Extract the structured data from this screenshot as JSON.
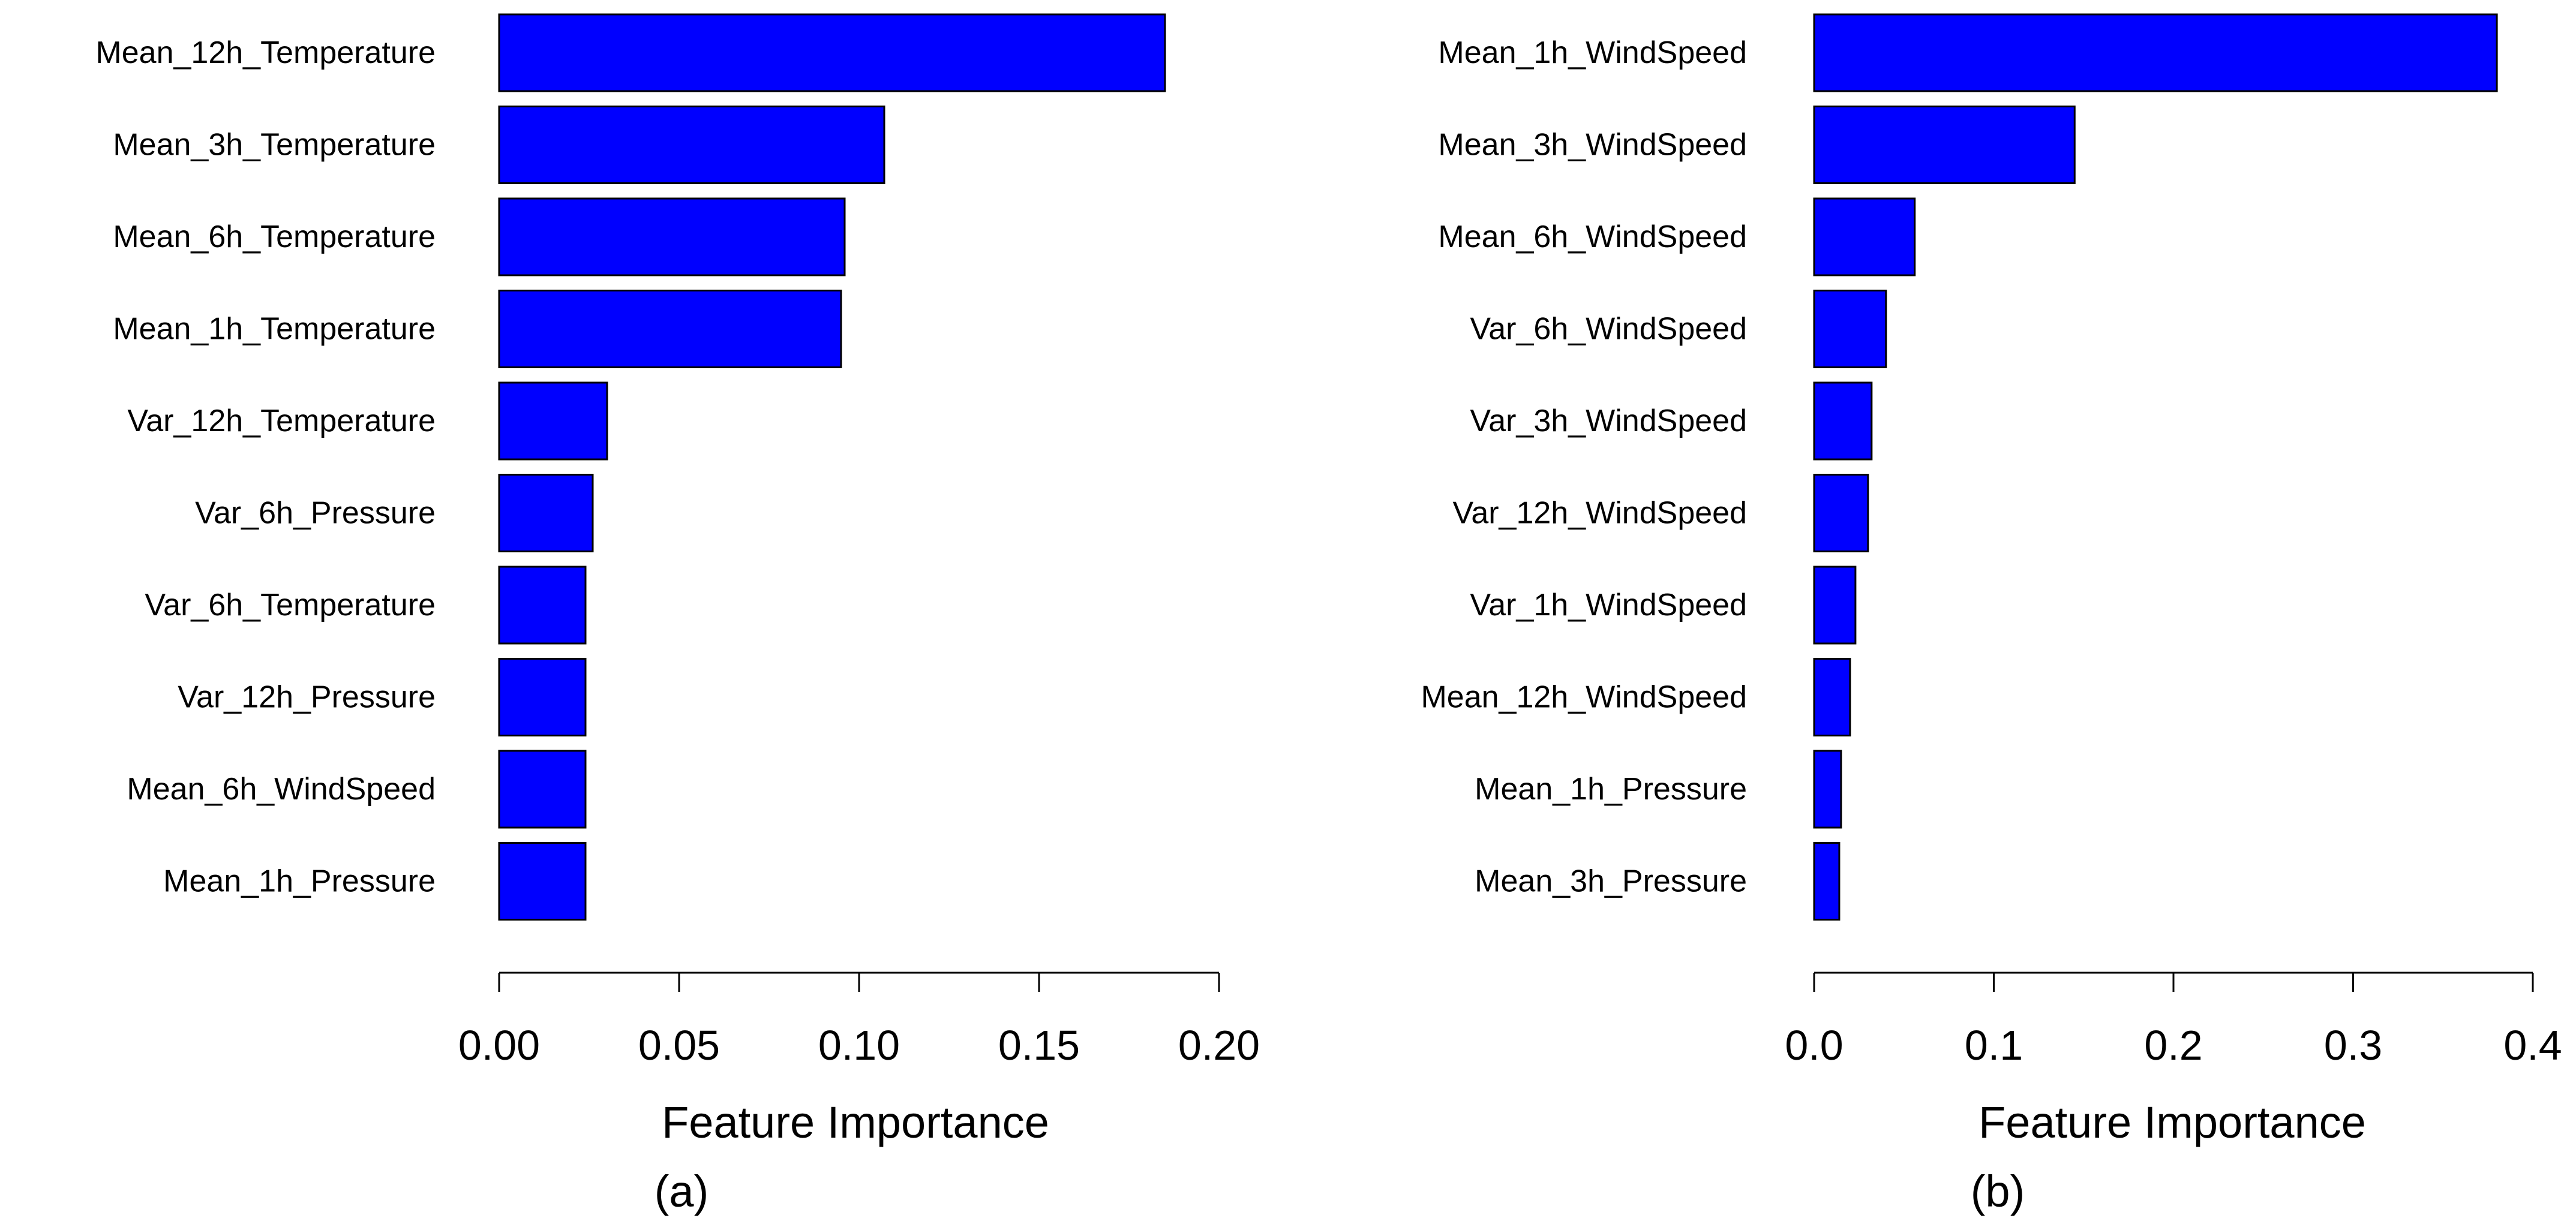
{
  "chart_data": [
    {
      "type": "bar",
      "orientation": "horizontal",
      "panel_label": "(a)",
      "xlabel": "Feature Importance",
      "ylabel": "",
      "xlim": [
        0,
        0.2
      ],
      "xticks": [
        0.0,
        0.05,
        0.1,
        0.15,
        0.2
      ],
      "xtick_labels": [
        "0.00",
        "0.05",
        "0.10",
        "0.15",
        "0.20"
      ],
      "bar_color": "#0000FF",
      "categories": [
        "Mean_12h_Temperature",
        "Mean_3h_Temperature",
        "Mean_6h_Temperature",
        "Mean_1h_Temperature",
        "Var_12h_Temperature",
        "Var_6h_Pressure",
        "Var_6h_Temperature",
        "Var_12h_Pressure",
        "Mean_6h_WindSpeed",
        "Mean_1h_Pressure"
      ],
      "values": [
        0.185,
        0.107,
        0.096,
        0.095,
        0.03,
        0.026,
        0.024,
        0.024,
        0.024,
        0.024
      ]
    },
    {
      "type": "bar",
      "orientation": "horizontal",
      "panel_label": "(b)",
      "xlabel": "Feature Importance",
      "ylabel": "",
      "xlim": [
        0,
        0.4
      ],
      "xticks": [
        0.0,
        0.1,
        0.2,
        0.3,
        0.4
      ],
      "xtick_labels": [
        "0.0",
        "0.1",
        "0.2",
        "0.3",
        "0.4"
      ],
      "bar_color": "#0000FF",
      "categories": [
        "Mean_1h_WindSpeed",
        "Mean_3h_WindSpeed",
        "Mean_6h_WindSpeed",
        "Var_6h_WindSpeed",
        "Var_3h_WindSpeed",
        "Var_12h_WindSpeed",
        "Var_1h_WindSpeed",
        "Mean_12h_WindSpeed",
        "Mean_1h_Pressure",
        "Mean_3h_Pressure"
      ],
      "values": [
        0.38,
        0.145,
        0.056,
        0.04,
        0.032,
        0.03,
        0.023,
        0.02,
        0.015,
        0.014
      ]
    }
  ]
}
